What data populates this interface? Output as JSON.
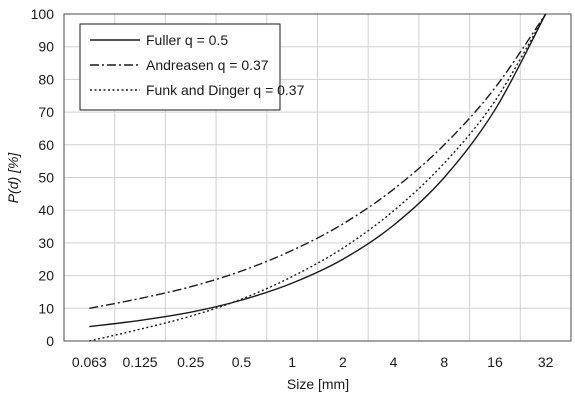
{
  "chart_data": {
    "type": "line",
    "xlabel": "Size [mm]",
    "ylabel": "P(d) [%]",
    "x_scale": "log2",
    "categories": [
      "0.063",
      "0.125",
      "0.25",
      "0.5",
      "1",
      "2",
      "4",
      "8",
      "16",
      "32"
    ],
    "x": [
      0.063,
      0.125,
      0.25,
      0.5,
      1,
      2,
      4,
      8,
      16,
      32
    ],
    "ylim": [
      0,
      100
    ],
    "yticks": [
      0,
      10,
      20,
      30,
      40,
      50,
      60,
      70,
      80,
      90,
      100
    ],
    "grid": true,
    "legend_position": "top-left",
    "series": [
      {
        "name": "Fuller q = 0.5",
        "line_style": "solid",
        "color": "#1a1a1a",
        "values": [
          4.4,
          6.3,
          8.8,
          12.5,
          17.7,
          25,
          35.4,
          50,
          70.7,
          100
        ]
      },
      {
        "name": "Andreasen q = 0.37",
        "line_style": "dash-dot",
        "color": "#1a1a1a",
        "values": [
          10,
          13,
          16.6,
          21.4,
          27.7,
          35.8,
          46.4,
          60,
          77.4,
          100
        ]
      },
      {
        "name": "Funk and Dinger q = 0.37",
        "line_style": "dotted",
        "color": "#1a1a1a",
        "values": [
          0,
          3.6,
          7.6,
          12.8,
          19.7,
          28.4,
          39.8,
          54.4,
          73.4,
          100
        ]
      }
    ]
  }
}
